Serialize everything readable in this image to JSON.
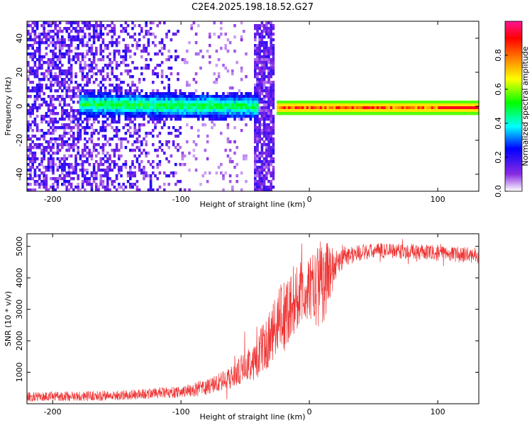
{
  "figure": {
    "title": "C2E4.2025.198.18.52.G27"
  },
  "chart_data": [
    {
      "type": "heatmap",
      "description_of_features": [
        {
          "x_range": [
            -220,
            -100
          ],
          "kind": "noise",
          "level": 0.2
        },
        {
          "x_range": [
            -180,
            -40
          ],
          "kind": "band",
          "center_y": 2,
          "level": 0.45
        },
        {
          "x_range": [
            -44,
            -28
          ],
          "kind": "vertical-strip",
          "level": 0.15
        },
        {
          "x_range": [
            -26,
            132
          ],
          "kind": "band",
          "center_y": 0,
          "level": 0.75
        }
      ],
      "xlabel": "Height of straight line (km)",
      "ylabel": "Frequency (Hz)",
      "xlim": [
        -220,
        132
      ],
      "ylim": [
        -50,
        50
      ],
      "xticks": [
        -200,
        -100,
        0,
        100
      ],
      "xtick_labels": [
        "-200",
        "-100",
        "0",
        "100"
      ],
      "yticks": [
        -40,
        -20,
        0,
        20,
        40
      ],
      "ytick_labels": [
        "-40",
        "-20",
        "0",
        "20",
        "40"
      ],
      "colorbar": {
        "label": "Normalized spectral amplitude",
        "range": [
          0,
          1
        ],
        "ticks": [
          0.0,
          0.2,
          0.4,
          0.6,
          0.8
        ],
        "tick_labels": [
          "0.0",
          "0.2",
          "0.4",
          "0.6",
          "0.8"
        ],
        "colors": [
          "#ffffff",
          "#8a2be2",
          "#0000ff",
          "#00ffff",
          "#00ff00",
          "#ffff00",
          "#ff8000",
          "#ff0000",
          "#ff1493"
        ]
      }
    },
    {
      "type": "line",
      "xlabel": "Height of straight line (km)",
      "ylabel": "SNR (10 * v/v)",
      "xlim": [
        -220,
        132
      ],
      "ylim": [
        0,
        5400
      ],
      "xticks": [
        -200,
        -100,
        0,
        100
      ],
      "xtick_labels": [
        "-200",
        "-100",
        "0",
        "100"
      ],
      "yticks": [
        1000,
        2000,
        3000,
        4000,
        5000
      ],
      "ytick_labels": [
        "1000",
        "2000",
        "3000",
        "4000",
        "5000"
      ],
      "color": "#ee3333",
      "envelope": {
        "x": [
          -220,
          -150,
          -100,
          -80,
          -60,
          -40,
          -25,
          -10,
          5,
          15,
          25,
          40,
          60,
          100,
          132
        ],
        "y": [
          220,
          260,
          380,
          520,
          850,
          1500,
          2500,
          3400,
          3700,
          4100,
          4650,
          4800,
          4880,
          4780,
          4700
        ]
      },
      "noise_amplitude": {
        "x": [
          -220,
          -100,
          -60,
          -40,
          -20,
          0,
          10,
          20,
          40,
          132
        ],
        "y": [
          150,
          180,
          350,
          700,
          1200,
          1000,
          1500,
          500,
          250,
          250
        ]
      }
    }
  ]
}
